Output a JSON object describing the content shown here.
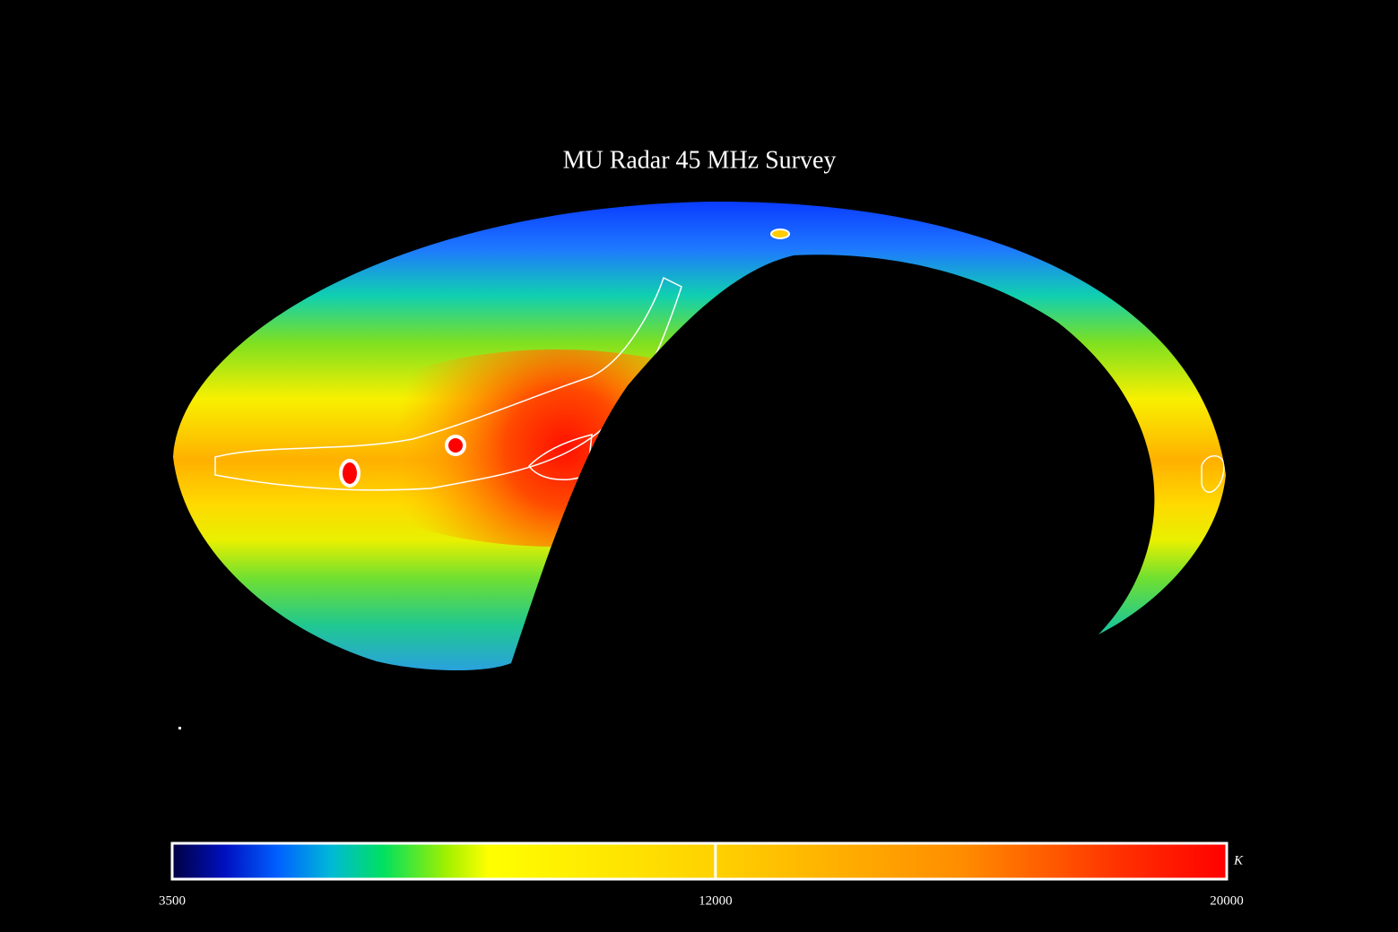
{
  "chart_data": {
    "type": "colormap",
    "title": "MU Radar 45 MHz Survey",
    "colorbar": {
      "lim": [
        3500,
        20000
      ],
      "ticks": [
        3500,
        12000,
        20000
      ],
      "unit": "K"
    }
  }
}
